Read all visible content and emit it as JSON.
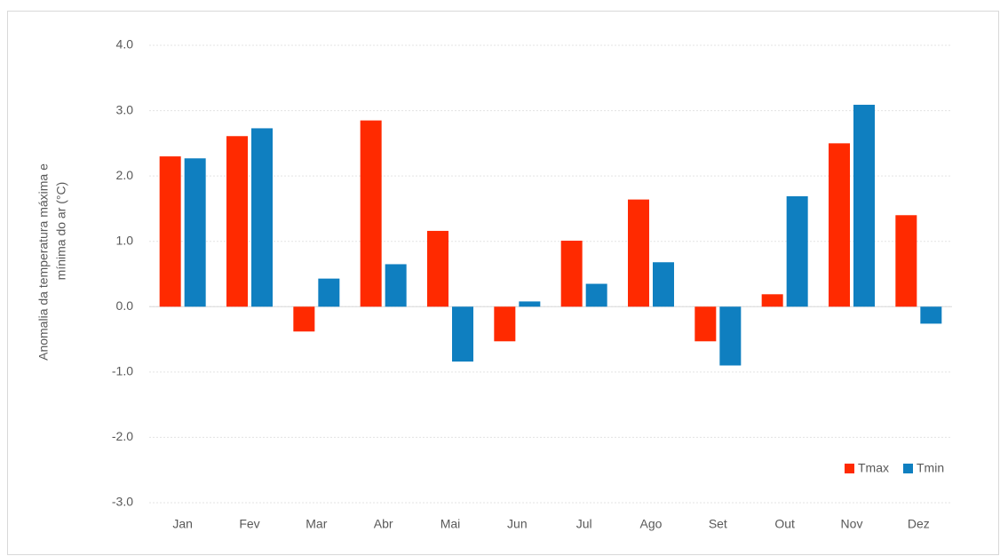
{
  "chart_data": {
    "type": "bar",
    "ylabel": [
      "Anomalia da temperatura máxima e",
      "mínima do ar (°C)"
    ],
    "categories": [
      "Jan",
      "Fev",
      "Mar",
      "Abr",
      "Mai",
      "Jun",
      "Jul",
      "Ago",
      "Set",
      "Out",
      "Nov",
      "Dez"
    ],
    "series": [
      {
        "name": "Tmax",
        "color": "#ff2a00",
        "values": [
          2.3,
          2.61,
          -0.38,
          2.85,
          1.16,
          -0.53,
          1.01,
          1.64,
          -0.53,
          0.19,
          2.5,
          1.4
        ]
      },
      {
        "name": "Tmin",
        "color": "#0f7fc0",
        "values": [
          2.27,
          2.73,
          0.43,
          0.65,
          -0.84,
          0.08,
          0.35,
          0.68,
          -0.9,
          1.69,
          3.09,
          -0.26
        ]
      }
    ],
    "ylim": [
      -3,
      4
    ],
    "yticks": [
      {
        "value": -3,
        "label": "-3.0"
      },
      {
        "value": -2,
        "label": "-2.0"
      },
      {
        "value": -1,
        "label": "-1.0"
      },
      {
        "value": 0,
        "label": "0.0"
      },
      {
        "value": 1,
        "label": "1.0"
      },
      {
        "value": 2,
        "label": "2.0"
      },
      {
        "value": 3,
        "label": "3.0"
      },
      {
        "value": 4,
        "label": "4.0"
      }
    ],
    "grid": true,
    "legend": "bottom-right"
  }
}
